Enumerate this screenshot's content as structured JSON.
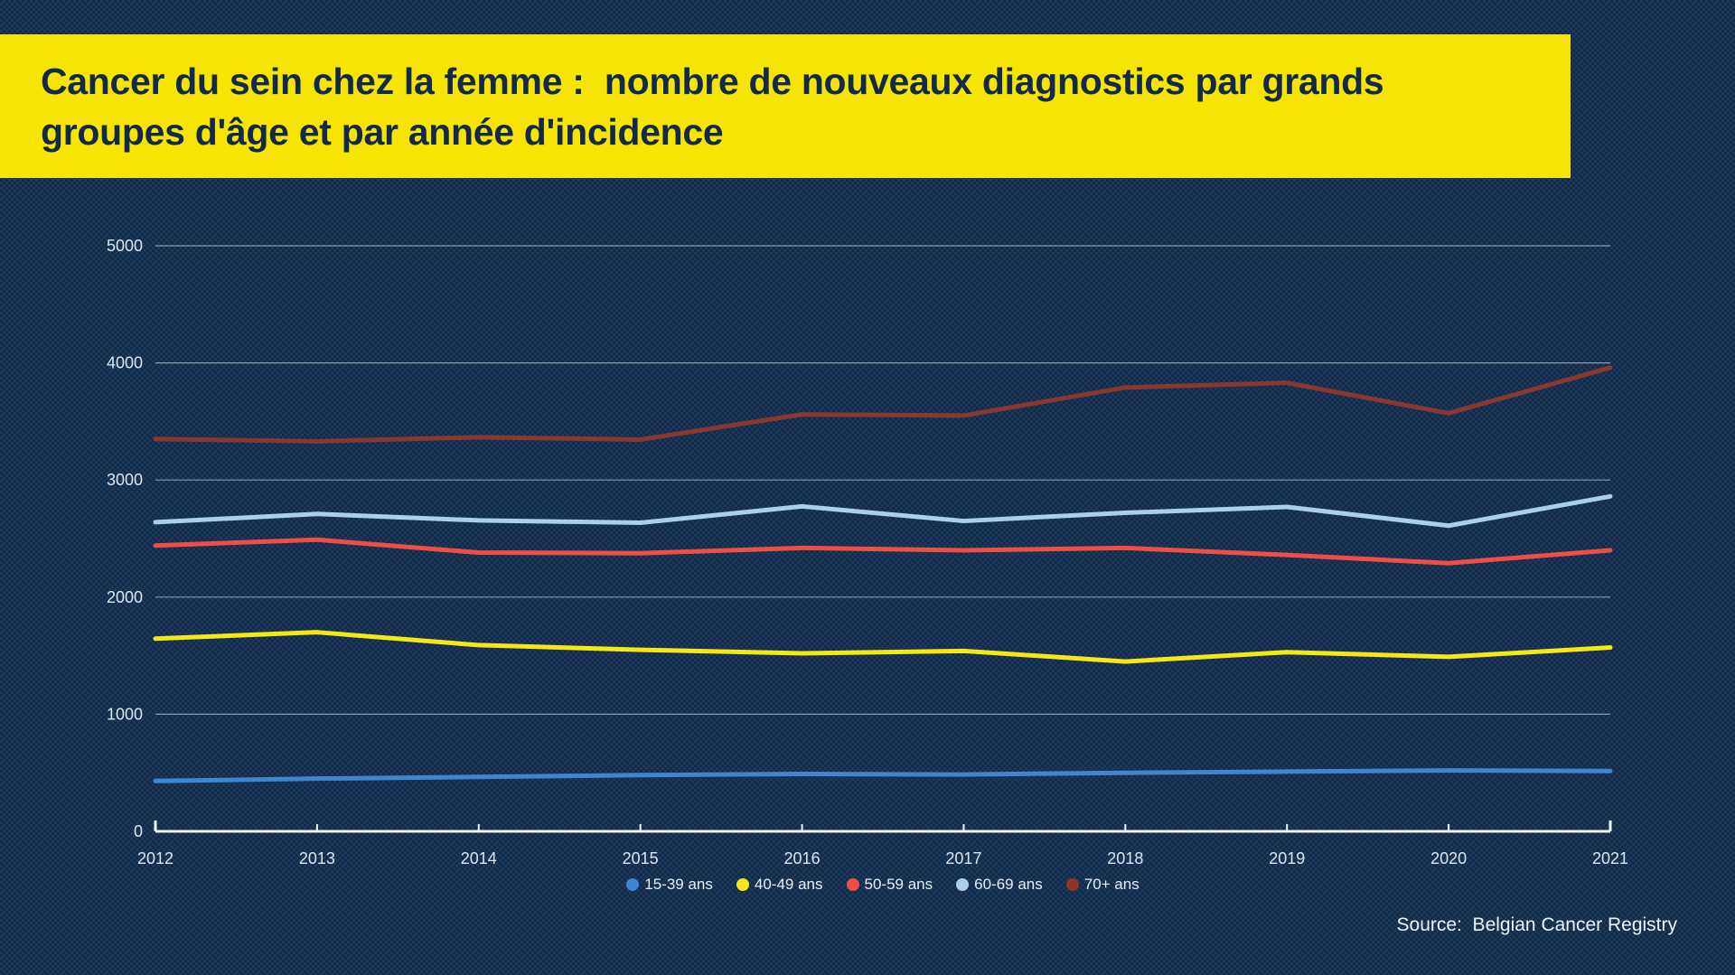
{
  "page": {
    "title_line1": "Cancer du sein chez la femme :  nombre de nouveaux diagnostics par grands",
    "title_line2": "groupes d'âge et par année d'incidence",
    "source_label": "Source:  Belgian Cancer Registry"
  },
  "colors": {
    "banner_yellow": "#f6e504",
    "title_text": "#13294a",
    "axis_text": "#dde6ee",
    "gridline": "rgba(255,255,255,0.5)",
    "axis_line": "#f2f6f9"
  },
  "chart_data": {
    "type": "line",
    "title": "Cancer du sein chez la femme : nombre de nouveaux diagnostics par grands groupes d'âge et par année d'incidence",
    "x": [
      "2012",
      "2013",
      "2014",
      "2015",
      "2016",
      "2017",
      "2018",
      "2019",
      "2020",
      "2021"
    ],
    "series": [
      {
        "name": "15-39 ans",
        "color": "#3e86d1",
        "values": [
          430,
          450,
          465,
          480,
          490,
          485,
          500,
          510,
          520,
          515
        ]
      },
      {
        "name": "40-49 ans",
        "color": "#f6e718",
        "values": [
          1645,
          1700,
          1590,
          1550,
          1520,
          1540,
          1450,
          1530,
          1490,
          1570
        ]
      },
      {
        "name": "50-59 ans",
        "color": "#ee4f45",
        "values": [
          2440,
          2490,
          2380,
          2375,
          2420,
          2400,
          2420,
          2360,
          2290,
          2400
        ]
      },
      {
        "name": "60-69 ans",
        "color": "#a9cfeb",
        "values": [
          2640,
          2710,
          2655,
          2635,
          2775,
          2650,
          2720,
          2770,
          2610,
          2860
        ]
      },
      {
        "name": "70+ ans",
        "color": "#8a372e",
        "values": [
          3350,
          3330,
          3365,
          3345,
          3560,
          3550,
          3790,
          3830,
          3570,
          3960
        ]
      }
    ],
    "ylim": [
      0,
      5000
    ],
    "y_ticks": [
      0,
      1000,
      2000,
      3000,
      4000,
      5000
    ],
    "grid": true,
    "legend_position": "bottom",
    "xlabel": "",
    "ylabel": ""
  }
}
